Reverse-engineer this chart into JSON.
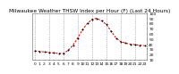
{
  "title": "Milwaukee Weather THSW Index per Hour (F) (Last 24 Hours)",
  "hours": [
    0,
    1,
    2,
    3,
    4,
    5,
    6,
    7,
    8,
    9,
    10,
    11,
    12,
    13,
    14,
    15,
    16,
    17,
    18,
    19,
    20,
    21,
    22,
    23
  ],
  "values": [
    27,
    26,
    25,
    24,
    23,
    22,
    22,
    28,
    38,
    52,
    68,
    80,
    88,
    90,
    85,
    78,
    65,
    52,
    45,
    42,
    40,
    39,
    38,
    37
  ],
  "line_color": "#cc0000",
  "marker_color": "#000000",
  "bg_color": "#ffffff",
  "grid_color": "#888888",
  "text_color": "#000000",
  "ylim_min": 10,
  "ylim_max": 100,
  "yticks": [
    10,
    20,
    30,
    40,
    50,
    60,
    70,
    80,
    90,
    100
  ],
  "ytick_labels": [
    "10",
    "20",
    "30",
    "40",
    "50",
    "60",
    "70",
    "80",
    "90",
    "100"
  ],
  "vgrid_positions": [
    0,
    3,
    6,
    9,
    12,
    15,
    18,
    21
  ],
  "title_fontsize": 4.2,
  "tick_fontsize": 3.2
}
